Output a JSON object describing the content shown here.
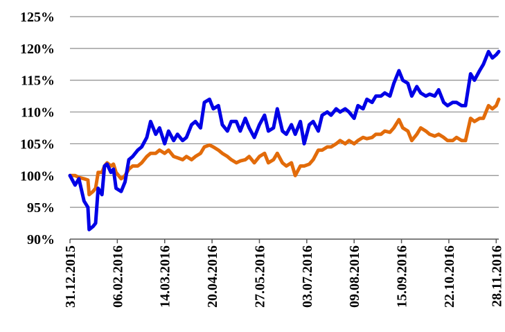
{
  "chart_data": {
    "type": "line",
    "title": "",
    "xlabel": "",
    "ylabel": "",
    "ylim": [
      90,
      125
    ],
    "ytick_labels": [
      "90%",
      "95%",
      "100%",
      "105%",
      "110%",
      "115%",
      "120%",
      "125%"
    ],
    "grid": "horizontal",
    "legend": "none",
    "x_ticks": [
      "31.12.2015",
      "06.02.2016",
      "14.03.2016",
      "20.04.2016",
      "27.05.2016",
      "03.07.2016",
      "09.08.2016",
      "15.09.2016",
      "22.10.2016",
      "28.11.2016"
    ],
    "series": [
      {
        "color": "#0000e6",
        "points": [
          [
            "2015-12-31",
            100
          ],
          [
            "2016-01-04",
            98.5
          ],
          [
            "2016-01-07",
            99.5
          ],
          [
            "2016-01-11",
            96
          ],
          [
            "2016-01-14",
            95
          ],
          [
            "2016-01-15",
            91.5
          ],
          [
            "2016-01-18",
            92
          ],
          [
            "2016-01-20",
            92.5
          ],
          [
            "2016-01-22",
            98
          ],
          [
            "2016-01-25",
            97
          ],
          [
            "2016-01-27",
            101.5
          ],
          [
            "2016-01-29",
            101.8
          ],
          [
            "2016-02-01",
            100.5
          ],
          [
            "2016-02-03",
            101
          ],
          [
            "2016-02-05",
            98
          ],
          [
            "2016-02-09",
            97.5
          ],
          [
            "2016-02-12",
            99
          ],
          [
            "2016-02-15",
            102.5
          ],
          [
            "2016-02-18",
            103
          ],
          [
            "2016-02-22",
            104
          ],
          [
            "2016-02-25",
            104.5
          ],
          [
            "2016-02-29",
            106
          ],
          [
            "2016-03-03",
            108.5
          ],
          [
            "2016-03-07",
            106.5
          ],
          [
            "2016-03-10",
            107.5
          ],
          [
            "2016-03-14",
            105
          ],
          [
            "2016-03-17",
            107
          ],
          [
            "2016-03-21",
            105.5
          ],
          [
            "2016-03-24",
            106.5
          ],
          [
            "2016-03-28",
            105.5
          ],
          [
            "2016-03-31",
            106
          ],
          [
            "2016-04-04",
            108
          ],
          [
            "2016-04-07",
            108.5
          ],
          [
            "2016-04-11",
            107.5
          ],
          [
            "2016-04-14",
            111.5
          ],
          [
            "2016-04-18",
            112
          ],
          [
            "2016-04-21",
            110.5
          ],
          [
            "2016-04-25",
            111
          ],
          [
            "2016-04-28",
            108
          ],
          [
            "2016-05-02",
            107
          ],
          [
            "2016-05-05",
            108.5
          ],
          [
            "2016-05-09",
            108.5
          ],
          [
            "2016-05-12",
            107
          ],
          [
            "2016-05-16",
            109
          ],
          [
            "2016-05-19",
            107.5
          ],
          [
            "2016-05-23",
            106
          ],
          [
            "2016-05-27",
            108
          ],
          [
            "2016-05-31",
            109.5
          ],
          [
            "2016-06-03",
            107
          ],
          [
            "2016-06-07",
            107.5
          ],
          [
            "2016-06-10",
            110.5
          ],
          [
            "2016-06-14",
            107
          ],
          [
            "2016-06-17",
            106.5
          ],
          [
            "2016-06-21",
            108
          ],
          [
            "2016-06-24",
            106.5
          ],
          [
            "2016-06-28",
            108.5
          ],
          [
            "2016-07-01",
            105
          ],
          [
            "2016-07-05",
            108
          ],
          [
            "2016-07-08",
            108.5
          ],
          [
            "2016-07-12",
            107
          ],
          [
            "2016-07-15",
            109.5
          ],
          [
            "2016-07-19",
            110
          ],
          [
            "2016-07-22",
            109.5
          ],
          [
            "2016-07-26",
            110.5
          ],
          [
            "2016-07-29",
            110
          ],
          [
            "2016-08-02",
            110.5
          ],
          [
            "2016-08-05",
            110
          ],
          [
            "2016-08-09",
            109
          ],
          [
            "2016-08-12",
            111
          ],
          [
            "2016-08-16",
            110.5
          ],
          [
            "2016-08-19",
            112
          ],
          [
            "2016-08-23",
            111.5
          ],
          [
            "2016-08-26",
            112.5
          ],
          [
            "2016-08-30",
            112.5
          ],
          [
            "2016-09-02",
            113
          ],
          [
            "2016-09-06",
            112.5
          ],
          [
            "2016-09-09",
            114.5
          ],
          [
            "2016-09-13",
            116.5
          ],
          [
            "2016-09-16",
            115
          ],
          [
            "2016-09-20",
            114.5
          ],
          [
            "2016-09-23",
            112.5
          ],
          [
            "2016-09-27",
            114
          ],
          [
            "2016-09-30",
            113
          ],
          [
            "2016-10-04",
            112.5
          ],
          [
            "2016-10-07",
            112.8
          ],
          [
            "2016-10-11",
            112.5
          ],
          [
            "2016-10-14",
            113.5
          ],
          [
            "2016-10-18",
            111.5
          ],
          [
            "2016-10-21",
            111
          ],
          [
            "2016-10-25",
            111.5
          ],
          [
            "2016-10-28",
            111.5
          ],
          [
            "2016-11-01",
            111
          ],
          [
            "2016-11-04",
            111
          ],
          [
            "2016-11-08",
            116
          ],
          [
            "2016-11-11",
            115
          ],
          [
            "2016-11-15",
            116.5
          ],
          [
            "2016-11-18",
            117.5
          ],
          [
            "2016-11-22",
            119.5
          ],
          [
            "2016-11-25",
            118.5
          ],
          [
            "2016-11-28",
            119
          ],
          [
            "2016-11-30",
            119.5
          ]
        ]
      },
      {
        "color": "#e26b0a",
        "points": [
          [
            "2015-12-31",
            100
          ],
          [
            "2016-01-04",
            100
          ],
          [
            "2016-01-07",
            99.7
          ],
          [
            "2016-01-11",
            99.5
          ],
          [
            "2016-01-14",
            99.3
          ],
          [
            "2016-01-15",
            97
          ],
          [
            "2016-01-18",
            97.5
          ],
          [
            "2016-01-20",
            98
          ],
          [
            "2016-01-22",
            100.5
          ],
          [
            "2016-01-25",
            100.5
          ],
          [
            "2016-01-27",
            101.5
          ],
          [
            "2016-01-29",
            102
          ],
          [
            "2016-02-01",
            101.5
          ],
          [
            "2016-02-03",
            101.8
          ],
          [
            "2016-02-05",
            100.5
          ],
          [
            "2016-02-09",
            99.5
          ],
          [
            "2016-02-12",
            100
          ],
          [
            "2016-02-15",
            101
          ],
          [
            "2016-02-18",
            101.5
          ],
          [
            "2016-02-22",
            101.5
          ],
          [
            "2016-02-25",
            102
          ],
          [
            "2016-02-29",
            103
          ],
          [
            "2016-03-03",
            103.5
          ],
          [
            "2016-03-07",
            103.5
          ],
          [
            "2016-03-10",
            104
          ],
          [
            "2016-03-14",
            103.5
          ],
          [
            "2016-03-17",
            104
          ],
          [
            "2016-03-21",
            103
          ],
          [
            "2016-03-24",
            102.8
          ],
          [
            "2016-03-28",
            102.5
          ],
          [
            "2016-03-31",
            103
          ],
          [
            "2016-04-04",
            102.5
          ],
          [
            "2016-04-07",
            103
          ],
          [
            "2016-04-11",
            103.5
          ],
          [
            "2016-04-14",
            104.5
          ],
          [
            "2016-04-18",
            104.8
          ],
          [
            "2016-04-21",
            104.5
          ],
          [
            "2016-04-25",
            104
          ],
          [
            "2016-04-28",
            103.5
          ],
          [
            "2016-05-02",
            103
          ],
          [
            "2016-05-05",
            102.5
          ],
          [
            "2016-05-09",
            102
          ],
          [
            "2016-05-12",
            102.3
          ],
          [
            "2016-05-16",
            102.5
          ],
          [
            "2016-05-19",
            103
          ],
          [
            "2016-05-23",
            102
          ],
          [
            "2016-05-27",
            103
          ],
          [
            "2016-05-31",
            103.5
          ],
          [
            "2016-06-03",
            102
          ],
          [
            "2016-06-07",
            102.5
          ],
          [
            "2016-06-10",
            103.5
          ],
          [
            "2016-06-14",
            102
          ],
          [
            "2016-06-17",
            101.5
          ],
          [
            "2016-06-21",
            102
          ],
          [
            "2016-06-24",
            100
          ],
          [
            "2016-06-28",
            101.5
          ],
          [
            "2016-07-01",
            101.5
          ],
          [
            "2016-07-05",
            101.8
          ],
          [
            "2016-07-08",
            102.5
          ],
          [
            "2016-07-12",
            104
          ],
          [
            "2016-07-15",
            104
          ],
          [
            "2016-07-19",
            104.5
          ],
          [
            "2016-07-22",
            104.5
          ],
          [
            "2016-07-26",
            105
          ],
          [
            "2016-07-29",
            105.5
          ],
          [
            "2016-08-02",
            105
          ],
          [
            "2016-08-05",
            105.5
          ],
          [
            "2016-08-09",
            105
          ],
          [
            "2016-08-12",
            105.5
          ],
          [
            "2016-08-16",
            106
          ],
          [
            "2016-08-19",
            105.8
          ],
          [
            "2016-08-23",
            106
          ],
          [
            "2016-08-26",
            106.5
          ],
          [
            "2016-08-30",
            106.5
          ],
          [
            "2016-09-02",
            107
          ],
          [
            "2016-09-06",
            106.8
          ],
          [
            "2016-09-09",
            107.5
          ],
          [
            "2016-09-13",
            108.8
          ],
          [
            "2016-09-16",
            107.5
          ],
          [
            "2016-09-20",
            107
          ],
          [
            "2016-09-23",
            105.5
          ],
          [
            "2016-09-27",
            106.5
          ],
          [
            "2016-09-30",
            107.5
          ],
          [
            "2016-10-04",
            107
          ],
          [
            "2016-10-07",
            106.5
          ],
          [
            "2016-10-11",
            106.2
          ],
          [
            "2016-10-14",
            106.5
          ],
          [
            "2016-10-18",
            106
          ],
          [
            "2016-10-21",
            105.5
          ],
          [
            "2016-10-25",
            105.5
          ],
          [
            "2016-10-28",
            106
          ],
          [
            "2016-11-01",
            105.5
          ],
          [
            "2016-11-04",
            105.5
          ],
          [
            "2016-11-08",
            109
          ],
          [
            "2016-11-11",
            108.5
          ],
          [
            "2016-11-15",
            109
          ],
          [
            "2016-11-18",
            109
          ],
          [
            "2016-11-22",
            111
          ],
          [
            "2016-11-25",
            110.5
          ],
          [
            "2016-11-28",
            111
          ],
          [
            "2016-11-30",
            112
          ]
        ]
      }
    ]
  }
}
